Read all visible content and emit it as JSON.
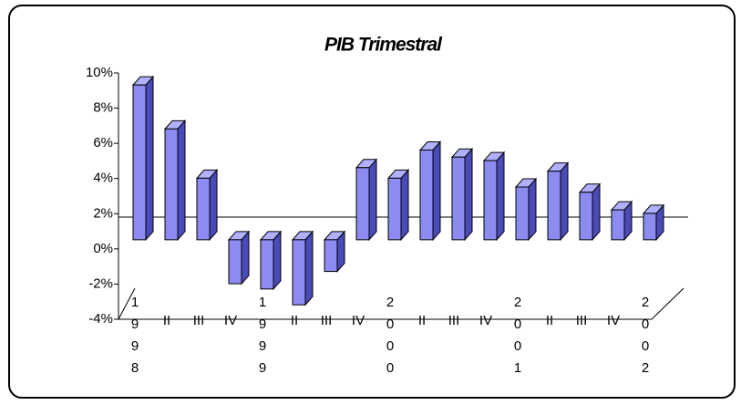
{
  "chart_data": {
    "type": "bar3d",
    "title": "PIB Trimestral",
    "categories": [
      "1998",
      "II",
      "III",
      "IV",
      "1999",
      "II",
      "III",
      "IV",
      "2000",
      "II",
      "III",
      "IV",
      "2001",
      "II",
      "III",
      "IV",
      "2002"
    ],
    "values": [
      8.8,
      6.3,
      3.5,
      -2.5,
      -2.8,
      -3.7,
      -1.8,
      4.1,
      3.5,
      5.1,
      4.7,
      4.5,
      3.0,
      3.9,
      2.7,
      1.7,
      1.5
    ],
    "color": "#8c8cf0",
    "ylim": [
      -4,
      10
    ],
    "yticks": [
      {
        "value": -4,
        "label": "-4%"
      },
      {
        "value": -2,
        "label": "-2%"
      },
      {
        "value": 0,
        "label": "0%"
      },
      {
        "value": 2,
        "label": "2%"
      },
      {
        "value": 4,
        "label": "4%"
      },
      {
        "value": 6,
        "label": "6%"
      },
      {
        "value": 8,
        "label": "8%"
      },
      {
        "value": 10,
        "label": "10%"
      }
    ],
    "grid": false
  }
}
